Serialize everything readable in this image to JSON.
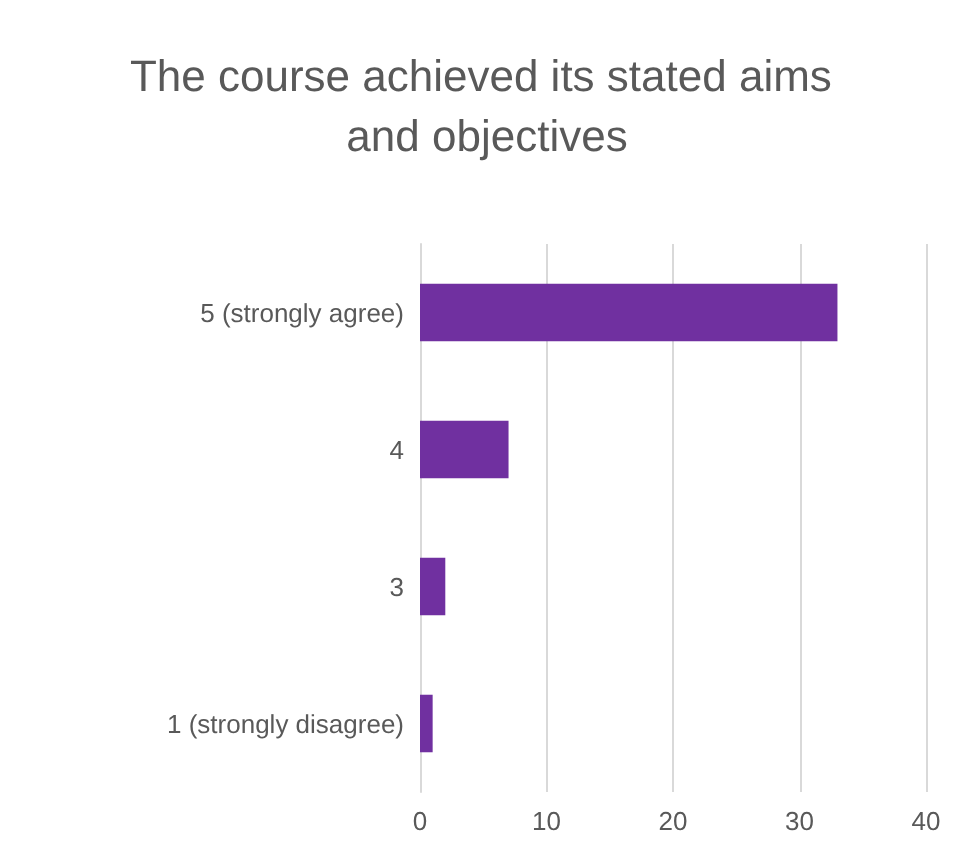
{
  "chart_data": {
    "type": "bar",
    "orientation": "horizontal",
    "title": "The course achieved its stated aims and objectives",
    "categories": [
      "5 (strongly agree)",
      "4",
      "3",
      "1 (strongly disagree)"
    ],
    "values": [
      33,
      7,
      2,
      1
    ],
    "color": "#7030a0",
    "xlim": [
      0,
      40
    ],
    "xticks": [
      0,
      10,
      20,
      30,
      40
    ],
    "grid": "x"
  }
}
